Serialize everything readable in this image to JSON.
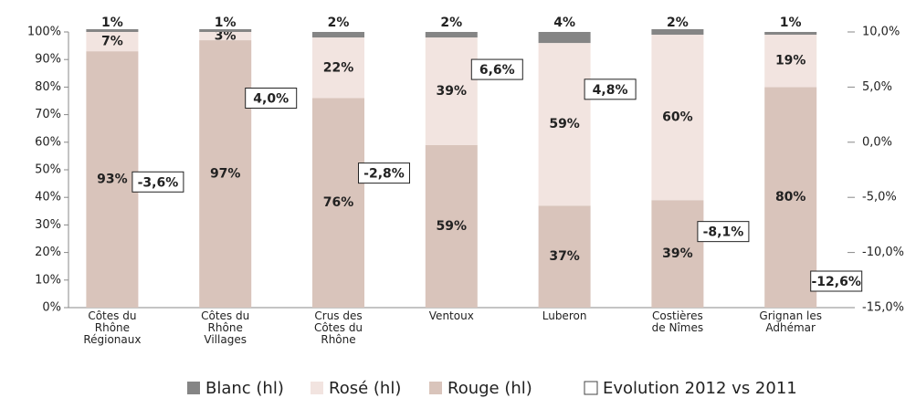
{
  "chart_data": {
    "type": "stacked_bar",
    "categories": [
      "Côtes du\nRhône\nRégionaux",
      "Côtes du\nRhône\nVillages",
      "Crus des\nCôtes du\nRhône",
      "Ventoux",
      "Luberon",
      "Costières\nde Nîmes",
      "Grignan les\nAdhémar"
    ],
    "series": [
      {
        "name": "Blanc (hl)",
        "color": "#858585",
        "values": [
          1,
          1,
          2,
          2,
          4,
          2,
          1
        ],
        "value_labels": [
          "1%",
          "1%",
          "2%",
          "2%",
          "4%",
          "2%",
          "1%"
        ]
      },
      {
        "name": "Rosé (hl)",
        "color": "#f2e4e0",
        "values": [
          7,
          3,
          22,
          39,
          59,
          60,
          19
        ],
        "value_labels": [
          "7%",
          "3%",
          "22%",
          "39%",
          "59%",
          "60%",
          "19%"
        ]
      },
      {
        "name": "Rouge (hl)",
        "color": "#d9c4bb",
        "values": [
          93,
          97,
          76,
          59,
          37,
          39,
          80
        ],
        "value_labels": [
          "93%",
          "97%",
          "76%",
          "59%",
          "37%",
          "39%",
          "80%"
        ]
      },
      {
        "name": "Evolution 2012 vs 2011",
        "color": "#ffffff",
        "axis": "y2",
        "values": [
          -3.6,
          4.0,
          -2.8,
          6.6,
          4.8,
          -8.1,
          -12.6
        ],
        "value_labels": [
          "-3,6%",
          "4,0%",
          "-2,8%",
          "6,6%",
          "4,8%",
          "-8,1%",
          "-12,6%"
        ]
      }
    ],
    "ylim": [
      0,
      100
    ],
    "yticks": [
      {
        "value": 0,
        "label": "0%"
      },
      {
        "value": 10,
        "label": "10%"
      },
      {
        "value": 20,
        "label": "20%"
      },
      {
        "value": 30,
        "label": "30%"
      },
      {
        "value": 40,
        "label": "40%"
      },
      {
        "value": 50,
        "label": "50%"
      },
      {
        "value": 60,
        "label": "60%"
      },
      {
        "value": 70,
        "label": "70%"
      },
      {
        "value": 80,
        "label": "80%"
      },
      {
        "value": 90,
        "label": "90%"
      },
      {
        "value": 100,
        "label": "100%"
      }
    ],
    "y2lim": [
      -15,
      10
    ],
    "y2ticks": [
      {
        "value": -15,
        "label": "-15,0%"
      },
      {
        "value": -10,
        "label": "-10,0%"
      },
      {
        "value": -5,
        "label": "-5,0%"
      },
      {
        "value": 0,
        "label": "0,0%"
      },
      {
        "value": 5,
        "label": "5,0%"
      },
      {
        "value": 10,
        "label": "10,0%"
      }
    ],
    "legend": "bottom",
    "grid": false
  }
}
